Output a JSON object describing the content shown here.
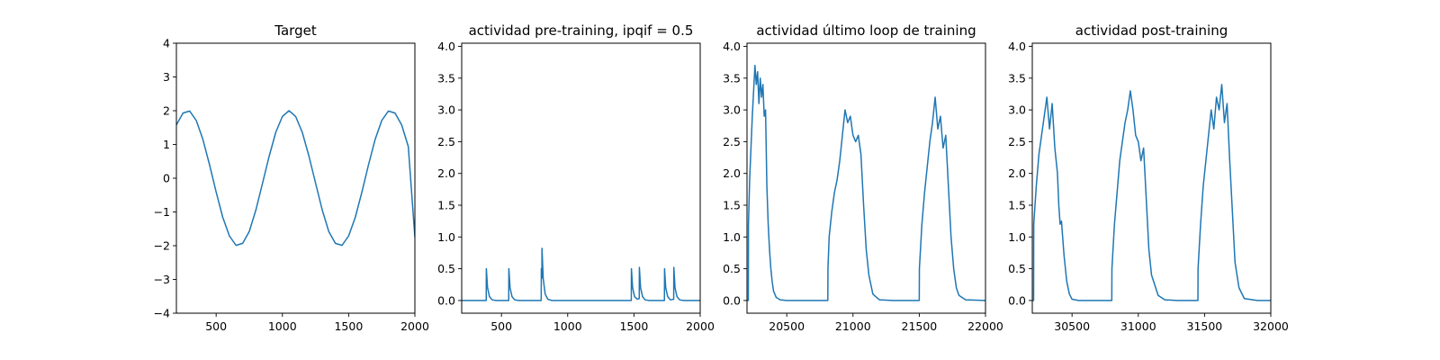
{
  "chart_data": [
    {
      "type": "line",
      "title": "Target",
      "xlim": [
        200,
        2000
      ],
      "ylim": [
        -4,
        4
      ],
      "xticks": [
        500,
        1000,
        1500,
        2000
      ],
      "yticks": [
        -4,
        -3,
        -2,
        -1,
        0,
        1,
        2,
        3,
        4
      ],
      "color": "#1f77b4",
      "series": [
        {
          "x": [
            200,
            250,
            300,
            350,
            400,
            450,
            500,
            550,
            600,
            650,
            700,
            750,
            800,
            850,
            900,
            950,
            1000,
            1050,
            1100,
            1150,
            1200,
            1250,
            1300,
            1350,
            1400,
            1450,
            1500,
            1550,
            1600,
            1650,
            1700,
            1750,
            1800,
            1850,
            1900,
            1950,
            2000
          ],
          "y": [
            1.58,
            1.93,
            1.99,
            1.71,
            1.15,
            0.4,
            -0.41,
            -1.16,
            -1.71,
            -1.99,
            -1.93,
            -1.58,
            -0.94,
            -0.15,
            0.65,
            1.36,
            1.83,
            2.0,
            1.83,
            1.36,
            0.66,
            -0.14,
            -0.93,
            -1.58,
            -1.93,
            -1.99,
            -1.71,
            -1.16,
            -0.41,
            0.4,
            1.15,
            1.71,
            1.99,
            1.93,
            1.58,
            0.94,
            -1.75
          ]
        }
      ]
    },
    {
      "type": "line",
      "title": "actividad pre-training, ipqif = 0.5",
      "xlim": [
        200,
        2000
      ],
      "ylim": [
        -0.2,
        4.05
      ],
      "xticks": [
        500,
        1000,
        1500,
        2000
      ],
      "yticks": [
        0.0,
        0.5,
        1.0,
        1.5,
        2.0,
        2.5,
        3.0,
        3.5,
        4.0
      ],
      "color": "#1f77b4",
      "series": [
        {
          "x": [
            200,
            385,
            386,
            395,
            410,
            430,
            460,
            555,
            556,
            565,
            580,
            600,
            630,
            800,
            801,
            805,
            806,
            815,
            830,
            850,
            880,
            1480,
            1481,
            1490,
            1505,
            1525,
            1540,
            1541,
            1550,
            1565,
            1585,
            1615,
            1730,
            1731,
            1740,
            1755,
            1775,
            1800,
            1801,
            1810,
            1825,
            1845,
            1875,
            2000
          ],
          "y": [
            0.0,
            0.0,
            0.5,
            0.2,
            0.06,
            0.01,
            0.0,
            0.0,
            0.5,
            0.2,
            0.06,
            0.01,
            0.0,
            0.0,
            0.5,
            0.35,
            0.82,
            0.35,
            0.1,
            0.02,
            0.0,
            0.0,
            0.5,
            0.2,
            0.06,
            0.02,
            0.03,
            0.52,
            0.2,
            0.06,
            0.01,
            0.0,
            0.0,
            0.5,
            0.2,
            0.06,
            0.01,
            0.02,
            0.52,
            0.2,
            0.06,
            0.01,
            0.0,
            0.0
          ]
        }
      ]
    },
    {
      "type": "line",
      "title": "actividad último loop de training",
      "xlim": [
        20200,
        22000
      ],
      "ylim": [
        -0.2,
        4.05
      ],
      "xticks": [
        20500,
        21000,
        21500,
        22000
      ],
      "yticks": [
        0.0,
        0.5,
        1.0,
        1.5,
        2.0,
        2.5,
        3.0,
        3.5,
        4.0
      ],
      "color": "#1f77b4",
      "series": [
        {
          "x": [
            20200,
            20210,
            20211,
            20220,
            20230,
            20240,
            20250,
            20260,
            20270,
            20280,
            20290,
            20300,
            20310,
            20320,
            20330,
            20340,
            20350,
            20360,
            20370,
            20380,
            20390,
            20400,
            20420,
            20450,
            20500,
            20600,
            20700,
            20810,
            20811,
            20820,
            20840,
            20860,
            20880,
            20900,
            20920,
            20940,
            20960,
            20980,
            21000,
            21020,
            21040,
            21060,
            21080,
            21100,
            21120,
            21150,
            21200,
            21300,
            21400,
            21500,
            21501,
            21520,
            21540,
            21560,
            21580,
            21600,
            21620,
            21640,
            21660,
            21680,
            21700,
            21720,
            21740,
            21760,
            21780,
            21800,
            21850,
            22000
          ],
          "y": [
            0.0,
            0.0,
            1.2,
            1.9,
            2.4,
            2.9,
            3.3,
            3.7,
            3.4,
            3.6,
            3.1,
            3.5,
            3.2,
            3.4,
            2.9,
            3.0,
            1.8,
            1.2,
            0.8,
            0.5,
            0.3,
            0.15,
            0.05,
            0.01,
            0.0,
            0.0,
            0.0,
            0.0,
            0.5,
            1.0,
            1.4,
            1.7,
            1.9,
            2.2,
            2.6,
            3.0,
            2.8,
            2.9,
            2.6,
            2.5,
            2.6,
            2.3,
            1.5,
            0.8,
            0.4,
            0.1,
            0.01,
            0.0,
            0.0,
            0.0,
            0.5,
            1.2,
            1.7,
            2.1,
            2.5,
            2.8,
            3.2,
            2.7,
            2.9,
            2.4,
            2.6,
            1.8,
            1.0,
            0.5,
            0.2,
            0.08,
            0.01,
            0.0
          ]
        }
      ]
    },
    {
      "type": "line",
      "title": "actividad post-training",
      "xlim": [
        30200,
        32000
      ],
      "ylim": [
        -0.2,
        4.05
      ],
      "xticks": [
        30500,
        31000,
        31500,
        32000
      ],
      "yticks": [
        0.0,
        0.5,
        1.0,
        1.5,
        2.0,
        2.5,
        3.0,
        3.5,
        4.0
      ],
      "color": "#1f77b4",
      "series": [
        {
          "x": [
            30200,
            30210,
            30211,
            30230,
            30250,
            30270,
            30290,
            30310,
            30330,
            30350,
            30370,
            30390,
            30400,
            30410,
            30420,
            30440,
            30460,
            30480,
            30500,
            30550,
            30700,
            30800,
            30801,
            30820,
            30840,
            30860,
            30880,
            30900,
            30920,
            30940,
            30960,
            30980,
            31000,
            31020,
            31040,
            31060,
            31080,
            31100,
            31150,
            31200,
            31300,
            31450,
            31451,
            31470,
            31490,
            31510,
            31530,
            31550,
            31570,
            31590,
            31610,
            31630,
            31650,
            31670,
            31690,
            31710,
            31730,
            31760,
            31800,
            31900,
            32000
          ],
          "y": [
            0.0,
            0.0,
            1.2,
            1.8,
            2.3,
            2.6,
            2.9,
            3.2,
            2.7,
            3.1,
            2.4,
            2.0,
            1.5,
            1.2,
            1.25,
            0.7,
            0.3,
            0.1,
            0.02,
            0.0,
            0.0,
            0.0,
            0.5,
            1.2,
            1.7,
            2.2,
            2.5,
            2.8,
            3.0,
            3.3,
            3.0,
            2.6,
            2.5,
            2.2,
            2.4,
            1.6,
            0.8,
            0.4,
            0.08,
            0.01,
            0.0,
            0.0,
            0.5,
            1.2,
            1.8,
            2.2,
            2.6,
            3.0,
            2.7,
            3.2,
            3.0,
            3.4,
            2.8,
            3.1,
            2.2,
            1.4,
            0.6,
            0.2,
            0.03,
            0.0,
            0.0
          ]
        }
      ]
    }
  ]
}
